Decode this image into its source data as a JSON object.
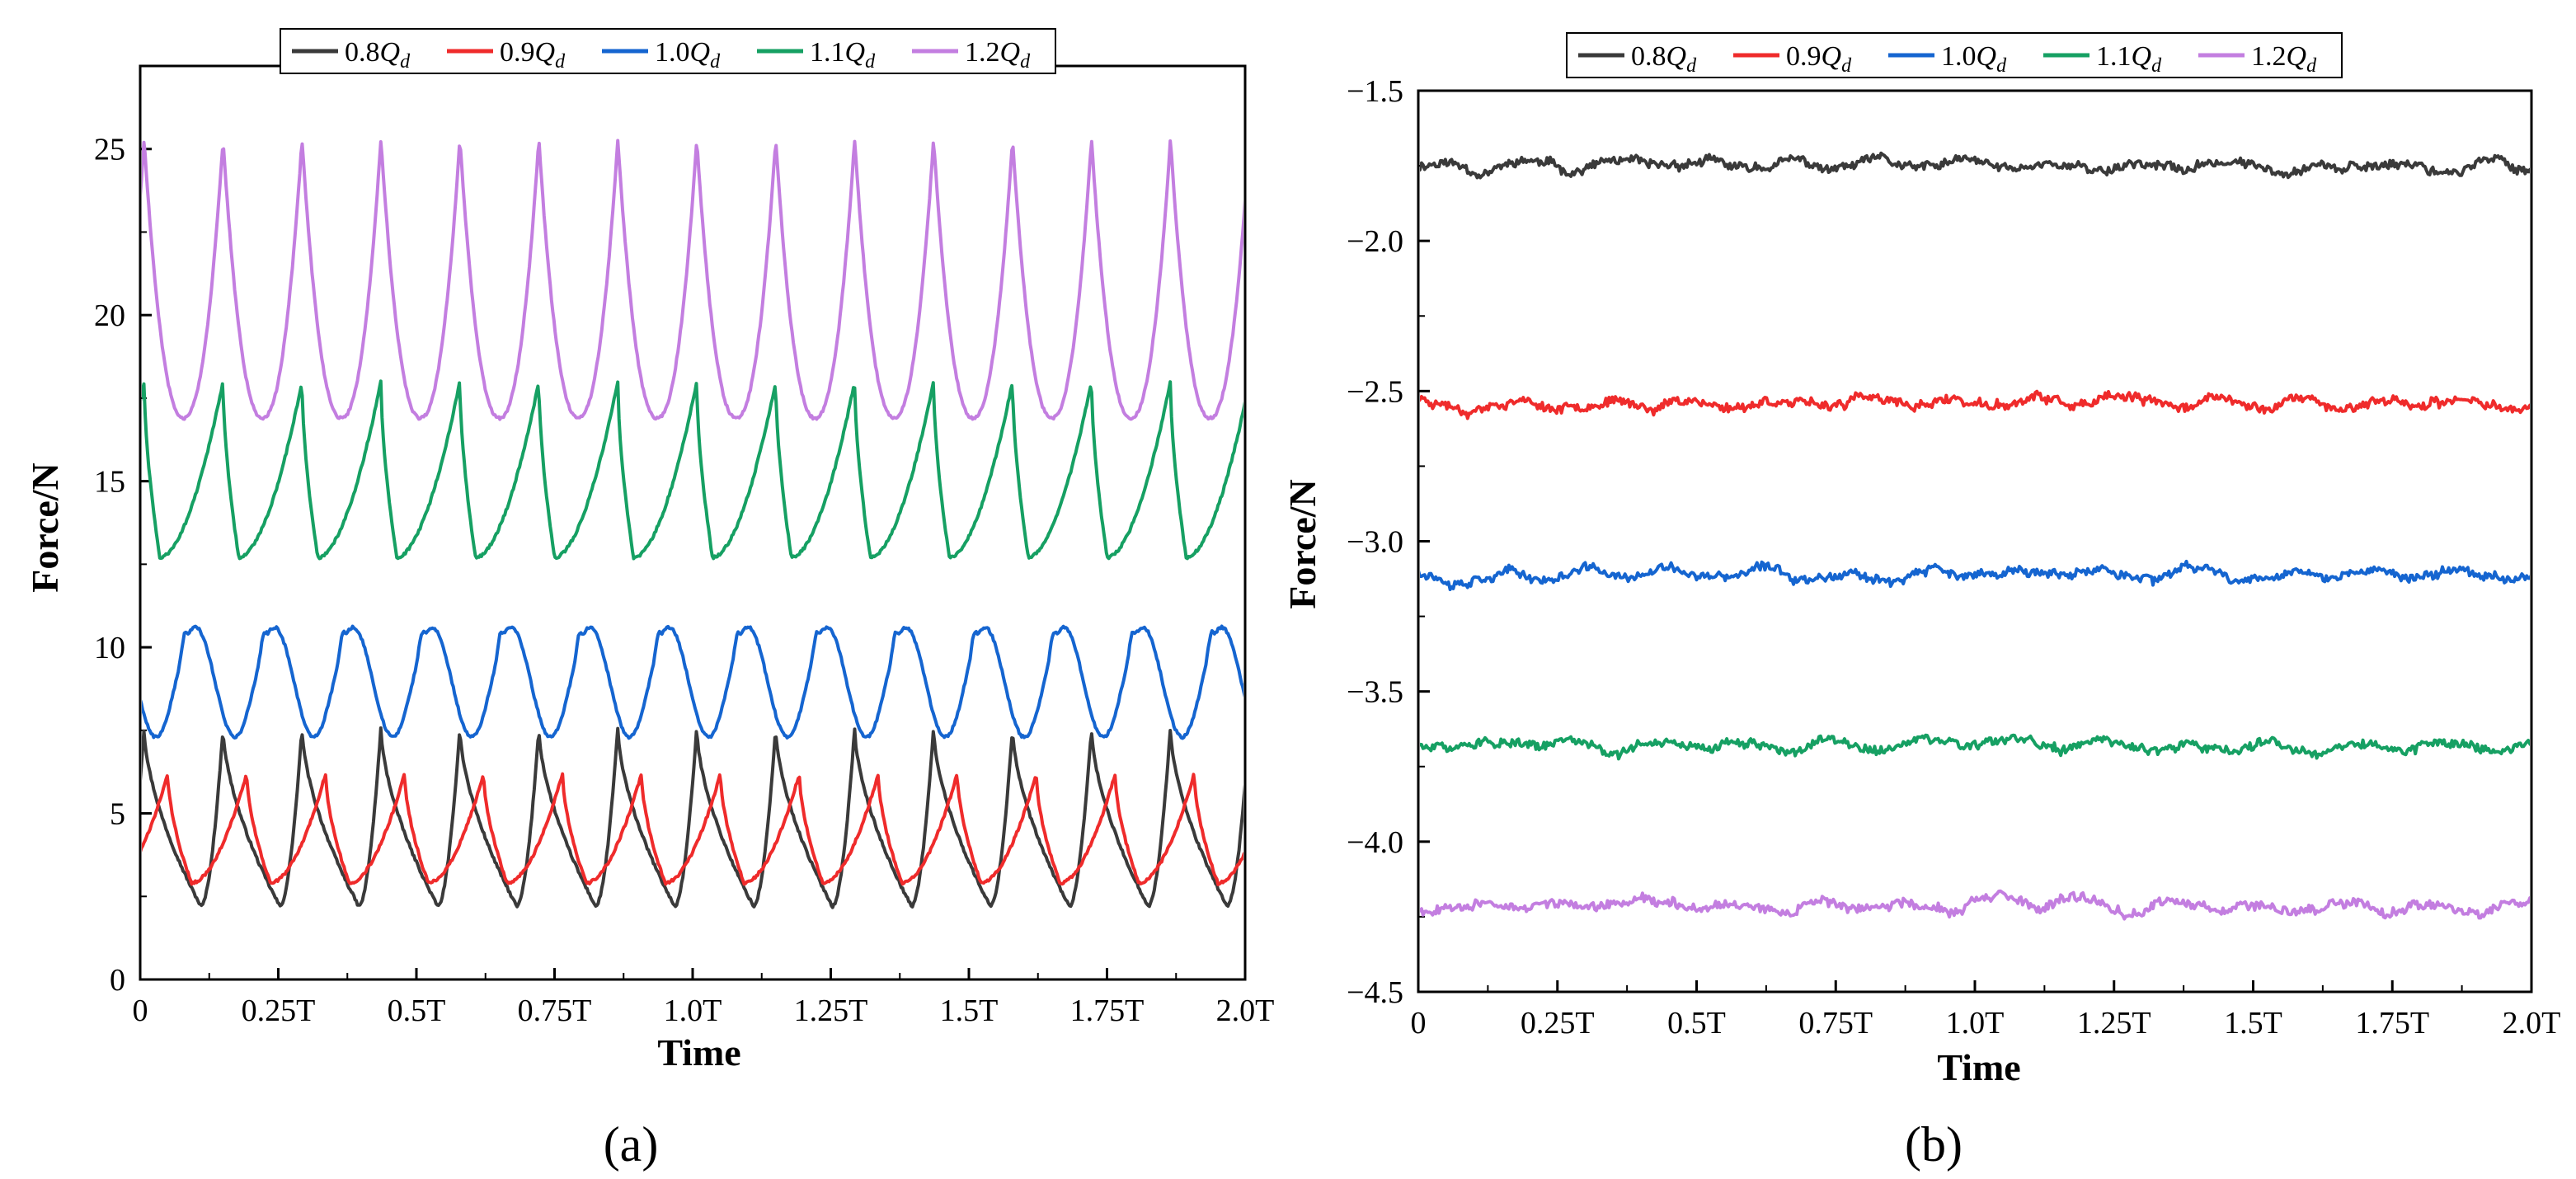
{
  "chart_data": [
    {
      "id": "a",
      "type": "line",
      "panel_label": "(a)",
      "xlabel": "Time",
      "ylabel": "Force/N",
      "xlim": [
        0,
        2.0
      ],
      "ylim": [
        0,
        27.5
      ],
      "yticks": [
        0,
        5,
        10,
        15,
        20,
        25
      ],
      "ytick_labels": [
        "0",
        "5",
        "10",
        "15",
        "20",
        "25"
      ],
      "xticks": [
        0,
        0.25,
        0.5,
        0.75,
        1.0,
        1.25,
        1.5,
        1.75,
        2.0
      ],
      "xtick_labels": [
        "0",
        "0.25T",
        "0.5T",
        "0.75T",
        "1.0T",
        "1.25T",
        "1.5T",
        "1.75T",
        "2.0T"
      ],
      "legend_position": "top",
      "series": [
        {
          "name": "0.8Q_d",
          "legend_coef": "0.8",
          "color": "#3a3a3a",
          "shape": "saw",
          "min": 2.2,
          "max": 7.6,
          "period": 0.1429,
          "peak_frac": 0.72,
          "peak_at": 0.15
        },
        {
          "name": "0.9Q_d",
          "legend_coef": "0.9",
          "color": "#ef2b2b",
          "shape": "saw",
          "min": 2.9,
          "max": 6.2,
          "period": 0.1429,
          "peak_frac": 0.3,
          "peak_at": 0.05
        },
        {
          "name": "1.0Q_d",
          "legend_coef": "1.0",
          "color": "#1565d0",
          "shape": "double",
          "min": 7.3,
          "max": 10.6,
          "period": 0.1429,
          "peak_frac": 0.8,
          "peak_at": 0.1
        },
        {
          "name": "1.1Q_d",
          "legend_coef": "1.1",
          "color": "#16a063",
          "shape": "saw",
          "min": 12.7,
          "max": 18.0,
          "period": 0.1429,
          "peak_frac": 0.2,
          "peak_at": 0.15
        },
        {
          "name": "1.2Q_d",
          "legend_coef": "1.2",
          "color": "#c37ee0",
          "shape": "cusp",
          "min": 16.9,
          "max": 25.3,
          "period": 0.1429,
          "peak_frac": 0.5,
          "peak_at": 0.15
        }
      ]
    },
    {
      "id": "b",
      "type": "line",
      "panel_label": "(b)",
      "xlabel": "Time",
      "ylabel": "Force/N",
      "xlim": [
        0,
        2.0
      ],
      "ylim": [
        -4.5,
        -1.5
      ],
      "yticks": [
        -4.5,
        -4.0,
        -3.5,
        -3.0,
        -2.5,
        -2.0,
        -1.5
      ],
      "ytick_labels": [
        "-4.5",
        "-4.0",
        "-3.5",
        "-3.0",
        "-2.5",
        "-2.0",
        "-1.5"
      ],
      "xticks": [
        0,
        0.25,
        0.5,
        0.75,
        1.0,
        1.25,
        1.5,
        1.75,
        2.0
      ],
      "xtick_labels": [
        "0",
        "0.25T",
        "0.5T",
        "0.75T",
        "1.0T",
        "1.25T",
        "1.5T",
        "1.75T",
        "2.0T"
      ],
      "legend_position": "top",
      "series": [
        {
          "name": "0.8Q_d",
          "legend_coef": "0.8",
          "color": "#3a3a3a",
          "shape": "noise",
          "mean": -1.75,
          "amp": 0.04,
          "seed": 11
        },
        {
          "name": "0.9Q_d",
          "legend_coef": "0.9",
          "color": "#ef2b2b",
          "shape": "noise",
          "mean": -2.54,
          "amp": 0.04,
          "seed": 23
        },
        {
          "name": "1.0Q_d",
          "legend_coef": "1.0",
          "color": "#1565d0",
          "shape": "noise",
          "mean": -3.11,
          "amp": 0.04,
          "seed": 37
        },
        {
          "name": "1.1Q_d",
          "legend_coef": "1.1",
          "color": "#16a063",
          "shape": "noise",
          "mean": -3.68,
          "amp": 0.04,
          "seed": 51
        },
        {
          "name": "1.2Q_d",
          "legend_coef": "1.2",
          "color": "#c37ee0",
          "shape": "noise",
          "mean": -4.21,
          "amp": 0.04,
          "seed": 67
        }
      ]
    }
  ],
  "legend_symbol": "Q",
  "legend_subscript": "d"
}
